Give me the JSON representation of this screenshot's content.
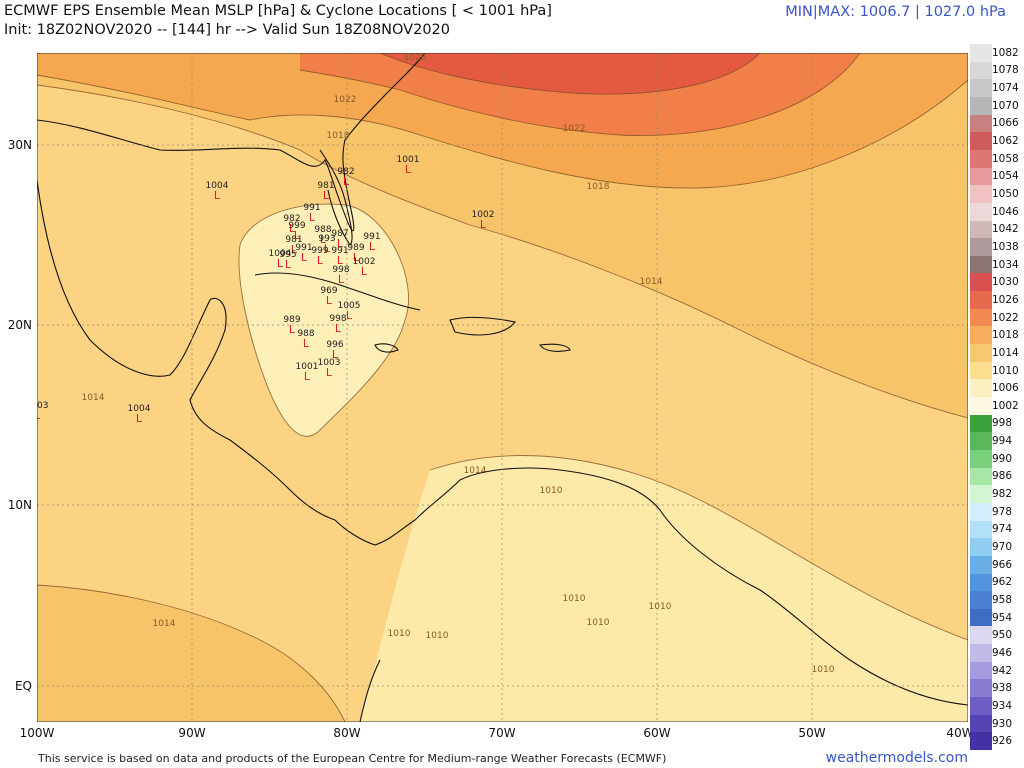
{
  "header": {
    "title_line1": "ECMWF EPS Ensemble Mean MSLP [hPa] & Cyclone Locations [ < 1001 hPa]",
    "title_line2": "Init: 18Z02NOV2020 -- [144] hr --> Valid Sun 18Z08NOV2020",
    "minmax": "MIN|MAX: 1006.7 | 1027.0 hPa"
  },
  "axes": {
    "x_ticks": [
      "100W",
      "90W",
      "80W",
      "70W",
      "60W",
      "50W",
      "40W"
    ],
    "y_ticks": [
      "30N",
      "20N",
      "10N",
      "EQ"
    ]
  },
  "colorbar": {
    "labels": [
      "1082",
      "1078",
      "1074",
      "1070",
      "1066",
      "1062",
      "1058",
      "1054",
      "1050",
      "1046",
      "1042",
      "1038",
      "1034",
      "1030",
      "1026",
      "1022",
      "1018",
      "1014",
      "1010",
      "1006",
      "1002",
      "998",
      "994",
      "990",
      "986",
      "982",
      "978",
      "974",
      "970",
      "966",
      "962",
      "958",
      "954",
      "950",
      "946",
      "942",
      "938",
      "934",
      "930",
      "926"
    ],
    "colors": [
      "#e6e6e6",
      "#d8d8d8",
      "#c8c8c8",
      "#b6b6b6",
      "#c98080",
      "#cf5c5c",
      "#de7676",
      "#e89a9a",
      "#f2c2c2",
      "#ecd8d8",
      "#cfb8b8",
      "#ae9a9a",
      "#8a7474",
      "#d85050",
      "#e86a4e",
      "#f08a52",
      "#f5ae5e",
      "#f8c870",
      "#fbde90",
      "#fdf0c0",
      "#fff8e0",
      "#3aa03a",
      "#5ab85a",
      "#7acf7a",
      "#a6e6a6",
      "#d2f5d2",
      "#d2eefa",
      "#b2e0f7",
      "#8fcdf2",
      "#6aaee6",
      "#5293dc",
      "#4a80d2",
      "#3f6dc4",
      "#dcd8f2",
      "#c2bbea",
      "#a69ae0",
      "#8a7cd2",
      "#6e5ec4",
      "#5744b4",
      "#4530a4"
    ]
  },
  "isobar_labels": [
    "1026",
    "1022",
    "1022",
    "1018",
    "1018",
    "1014",
    "1014",
    "1014",
    "1014",
    "1010",
    "1010",
    "1010",
    "1010",
    "1010",
    "1010",
    "1010"
  ],
  "cyclones": [
    {
      "p": "1001",
      "x": 408,
      "y": 162
    },
    {
      "p": "1004",
      "x": 217,
      "y": 188
    },
    {
      "p": "981",
      "x": 326,
      "y": 188
    },
    {
      "p": "982",
      "x": 346,
      "y": 174
    },
    {
      "p": "1002",
      "x": 483,
      "y": 217
    },
    {
      "p": "991",
      "x": 312,
      "y": 210
    },
    {
      "p": "982",
      "x": 292,
      "y": 221
    },
    {
      "p": "999",
      "x": 297,
      "y": 228
    },
    {
      "p": "988",
      "x": 323,
      "y": 232
    },
    {
      "p": "987",
      "x": 340,
      "y": 236
    },
    {
      "p": "981",
      "x": 294,
      "y": 242
    },
    {
      "p": "993",
      "x": 327,
      "y": 241
    },
    {
      "p": "991",
      "x": 304,
      "y": 250
    },
    {
      "p": "999",
      "x": 320,
      "y": 253
    },
    {
      "p": "991",
      "x": 340,
      "y": 253
    },
    {
      "p": "989",
      "x": 356,
      "y": 250
    },
    {
      "p": "1004",
      "x": 280,
      "y": 256
    },
    {
      "p": "995",
      "x": 288,
      "y": 257
    },
    {
      "p": "1002",
      "x": 364,
      "y": 264
    },
    {
      "p": "998",
      "x": 341,
      "y": 272
    },
    {
      "p": "969",
      "x": 329,
      "y": 293
    },
    {
      "p": "1005",
      "x": 349,
      "y": 308
    },
    {
      "p": "989",
      "x": 292,
      "y": 322
    },
    {
      "p": "998",
      "x": 338,
      "y": 321
    },
    {
      "p": "988",
      "x": 306,
      "y": 336
    },
    {
      "p": "996",
      "x": 335,
      "y": 347
    },
    {
      "p": "1001",
      "x": 307,
      "y": 369
    },
    {
      "p": "1003",
      "x": 329,
      "y": 365
    },
    {
      "p": "1003",
      "x": 37,
      "y": 408
    },
    {
      "p": "1004",
      "x": 139,
      "y": 411
    },
    {
      "p": "991",
      "x": 372,
      "y": 239
    }
  ],
  "footer": {
    "credit": "This service is based on data and products of the European Centre for Medium-range Weather Forecasts (ECMWF)",
    "site": "weathermodels.com"
  }
}
